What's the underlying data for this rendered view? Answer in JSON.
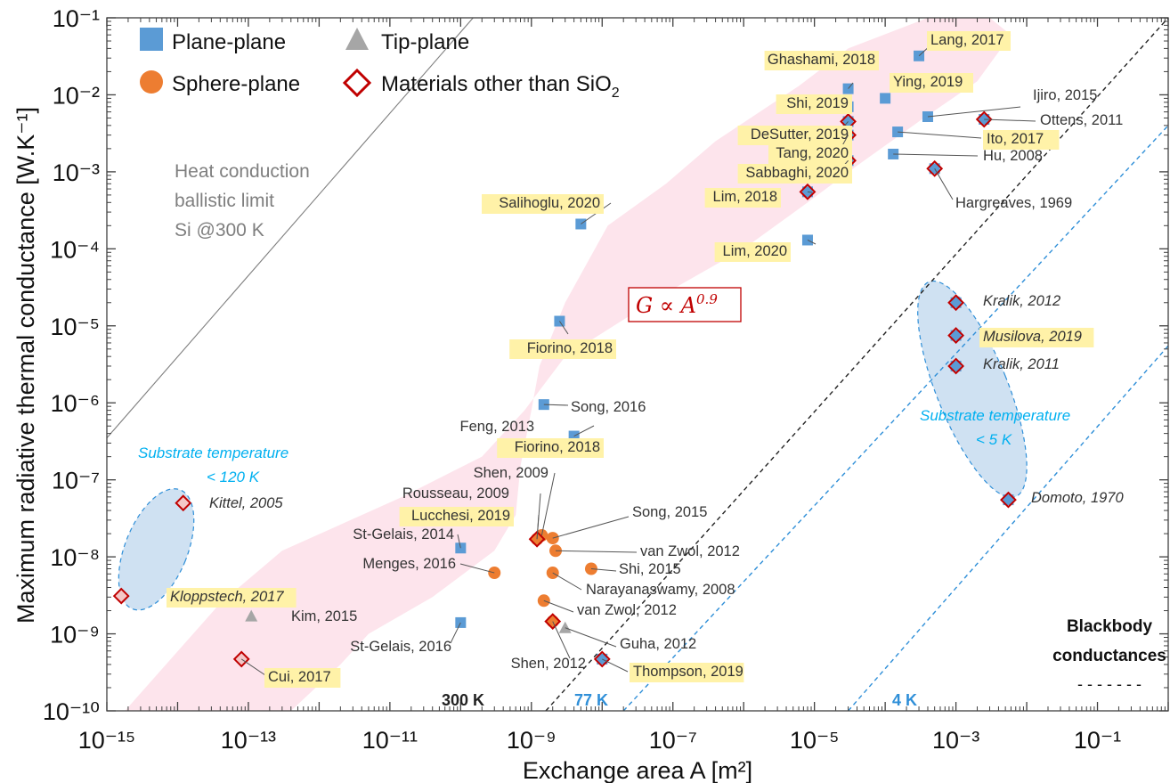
{
  "chart_data": {
    "type": "scatter",
    "xscale": "log",
    "yscale": "log",
    "xlabel": "Exchange area A [m²]",
    "ylabel": "Maximum radiative thermal conductance [W.K⁻¹]",
    "xlim": [
      "1e-15",
      "1"
    ],
    "ylim": [
      "1e-10",
      "1e-1"
    ],
    "x_ticks": [
      "10⁻¹⁵",
      "10⁻¹³",
      "10⁻¹¹",
      "10⁻⁹",
      "10⁻⁷",
      "10⁻⁵",
      "10⁻³",
      "10⁻¹"
    ],
    "y_ticks": [
      "10⁻¹⁰",
      "10⁻⁹",
      "10⁻⁸",
      "10⁻⁷",
      "10⁻⁶",
      "10⁻⁵",
      "10⁻⁴",
      "10⁻³",
      "10⁻²",
      "10⁻¹"
    ],
    "legend": {
      "position": "top-left",
      "entries": [
        {
          "marker": "square",
          "label": "Plane-plane"
        },
        {
          "marker": "triangle",
          "label": "Tip-plane"
        },
        {
          "marker": "circle",
          "label": "Sphere-plane"
        },
        {
          "marker": "diamond",
          "label": "Materials other than SiO",
          "subscript": "2"
        }
      ]
    },
    "colors": {
      "plane": "#5b9bd5",
      "sphere": "#ed7d31",
      "tip": "#a6a6a6",
      "diamond": "#c00000",
      "highlight": "#fff2a8",
      "band": "#fde4ec",
      "ellipse": "#cfe1f2",
      "substrate_text": "#00b0f0",
      "line_300k": "#222222",
      "line_cold": "#2f8fd8",
      "ballistic": "#7f7f7f",
      "fit_text": "#c00000"
    },
    "annotations": {
      "fit": "G ∝ A",
      "fit_exp": "0.9",
      "ballistic": [
        "Heat conduction",
        "ballistic limit",
        "Si @300 K"
      ],
      "substrate_left": [
        "Substrate temperature",
        "< 120 K"
      ],
      "substrate_right": [
        "Substrate temperature",
        "< 5 K"
      ],
      "blackbody": [
        "Blackbody",
        "conductances"
      ],
      "blackbody_dash": "- - - - - - -",
      "line_labels": [
        "300 K",
        "77 K",
        "4 K"
      ]
    },
    "lines": [
      {
        "name": "300 K",
        "x": [
          "1.6e-9",
          "1e0"
        ],
        "y": [
          "1e-10",
          "1e-1"
        ]
      },
      {
        "name": "77 K",
        "x": [
          "2e-8",
          "1e0"
        ],
        "y": [
          "1e-10",
          "4e-3"
        ]
      },
      {
        "name": "4 K",
        "x": [
          "3e-5",
          "1e0"
        ],
        "y": [
          "1e-10",
          "5.5e-6"
        ]
      },
      {
        "name": "ballistic",
        "x": [
          "1e-15",
          "1.5e-10"
        ],
        "y": [
          "3.5e-7",
          "1e-1"
        ]
      }
    ],
    "points": [
      {
        "label": "Lang, 2017",
        "x": 0.0003,
        "y": 0.032,
        "type": "plane",
        "hl": true
      },
      {
        "label": "Ghashami, 2018",
        "x": 3e-05,
        "y": 0.012,
        "type": "plane",
        "hl": true
      },
      {
        "label": "Ying, 2019",
        "x": 0.0001,
        "y": 0.009,
        "type": "plane",
        "hl": true
      },
      {
        "label": "Shi, 2019",
        "x": 3e-05,
        "y": 0.007,
        "type": "plane",
        "hl": true
      },
      {
        "label": "Ijiro, 2015",
        "x": 0.0004,
        "y": 0.0052,
        "type": "plane",
        "hl": false
      },
      {
        "label": "Ottens, 2011",
        "x": 0.0025,
        "y": 0.0048,
        "type": "plane",
        "mat": true,
        "hl": false
      },
      {
        "label": "DeSutter, 2019",
        "x": 3e-05,
        "y": 0.0045,
        "type": "plane",
        "mat": true,
        "hl": true
      },
      {
        "label": "Ito, 2017",
        "x": 0.00015,
        "y": 0.0033,
        "type": "plane",
        "hl": true
      },
      {
        "label": "Tang, 2020",
        "x": 3e-05,
        "y": 0.003,
        "type": "plane",
        "mat": true,
        "hl": true
      },
      {
        "label": "Hu, 2008",
        "x": 0.00013,
        "y": 0.0017,
        "type": "plane",
        "hl": false
      },
      {
        "label": "Sabbaghi, 2020",
        "x": 3e-05,
        "y": 0.0014,
        "type": "plane",
        "mat": true,
        "hl": true
      },
      {
        "label": "Hargreaves, 1969",
        "x": 0.0005,
        "y": 0.0011,
        "type": "plane",
        "mat": true,
        "hl": false
      },
      {
        "label": "Lim, 2018",
        "x": 8e-06,
        "y": 0.00055,
        "type": "plane",
        "mat": true,
        "hl": true
      },
      {
        "label": "Salihoglu, 2020",
        "x": 5e-09,
        "y": 0.00021,
        "type": "plane",
        "hl": true
      },
      {
        "label": "Lim, 2020",
        "x": 8e-06,
        "y": 0.00013,
        "type": "plane",
        "hl": true
      },
      {
        "label": "Fiorino, 2018",
        "x": 2.5e-09,
        "y": 1.15e-05,
        "type": "plane",
        "hl": true
      },
      {
        "label": "Kralik, 2012",
        "x": 0.001,
        "y": 2e-05,
        "type": "plane",
        "mat": true,
        "hl": false,
        "italic": true,
        "navy": true
      },
      {
        "label": "Musilova, 2019",
        "x": 0.001,
        "y": 7.5e-06,
        "type": "plane",
        "mat": true,
        "hl": true,
        "italic": true,
        "navy": true
      },
      {
        "label": "Kralik, 2011",
        "x": 0.001,
        "y": 3e-06,
        "type": "plane",
        "mat": true,
        "hl": false,
        "italic": true,
        "navy": true
      },
      {
        "label": "Song, 2016",
        "x": 1.5e-09,
        "y": 9.5e-07,
        "type": "plane",
        "hl": false
      },
      {
        "label": "Feng, 2013",
        "x": 4e-09,
        "y": 3.7e-07,
        "type": "plane",
        "hl": false
      },
      {
        "label": "Fiorino, 2018",
        "x": 3e-09,
        "y": 2.6e-07,
        "type": "plane",
        "hl": true
      },
      {
        "label": "Domoto, 1970",
        "x": 0.0055,
        "y": 5.5e-08,
        "type": "plane",
        "mat": true,
        "hl": false,
        "italic": true,
        "navy": true
      },
      {
        "label": "Kittel, 2005",
        "x": 1.2e-14,
        "y": 5e-08,
        "type": "none",
        "mat": true,
        "hl": false,
        "italic": true,
        "navy": true
      },
      {
        "label": "Shen, 2009",
        "x": 1.4e-09,
        "y": 1.9e-08,
        "type": "sphere",
        "hl": false
      },
      {
        "label": "Rousseau, 2009",
        "x": 1.2e-09,
        "y": 1.7e-08,
        "type": "sphere",
        "hl": false
      },
      {
        "label": "Lucchesi, 2019",
        "x": 1.2e-09,
        "y": 1.7e-08,
        "type": "sphere",
        "mat": true,
        "hl": true
      },
      {
        "label": "Song, 2015",
        "x": 2e-09,
        "y": 1.75e-08,
        "type": "sphere",
        "hl": false
      },
      {
        "label": "St-Gelais, 2014",
        "x": 1e-10,
        "y": 1.3e-08,
        "type": "plane",
        "hl": false
      },
      {
        "label": "van Zwol, 2012",
        "x": 2.2e-09,
        "y": 1.2e-08,
        "type": "sphere",
        "hl": false
      },
      {
        "label": "Menges, 2016",
        "x": 3e-10,
        "y": 6.2e-09,
        "type": "sphere",
        "hl": false
      },
      {
        "label": "Shi, 2015",
        "x": 7e-09,
        "y": 7e-09,
        "type": "sphere",
        "hl": false
      },
      {
        "label": "Narayanaswamy, 2008",
        "x": 2e-09,
        "y": 6.2e-09,
        "type": "sphere",
        "hl": false
      },
      {
        "label": "Kloppstech, 2017",
        "x": 1.6e-15,
        "y": 3.1e-09,
        "type": "none",
        "mat": true,
        "hl": true,
        "italic": true,
        "navy": true
      },
      {
        "label": "van Zwol, 2012",
        "x": 1.5e-09,
        "y": 2.7e-09,
        "type": "sphere",
        "hl": false
      },
      {
        "label": "Kim, 2015",
        "x": 1.1e-13,
        "y": 1.7e-09,
        "type": "tip",
        "hl": false
      },
      {
        "label": "St-Gelais, 2016",
        "x": 1e-10,
        "y": 1.4e-09,
        "type": "plane",
        "hl": false
      },
      {
        "label": "Shen, 2012",
        "x": 2e-09,
        "y": 1.45e-09,
        "type": "sphere",
        "mat": true,
        "hl": false
      },
      {
        "label": "Guha, 2012",
        "x": 3e-09,
        "y": 1.2e-09,
        "type": "tip",
        "hl": false
      },
      {
        "label": "Thompson, 2019",
        "x": 1e-08,
        "y": 4.7e-10,
        "type": "plane",
        "mat": true,
        "hl": true
      },
      {
        "label": "Cui, 2017",
        "x": 8e-14,
        "y": 4.7e-10,
        "type": "none",
        "mat": true,
        "hl": true
      }
    ]
  }
}
